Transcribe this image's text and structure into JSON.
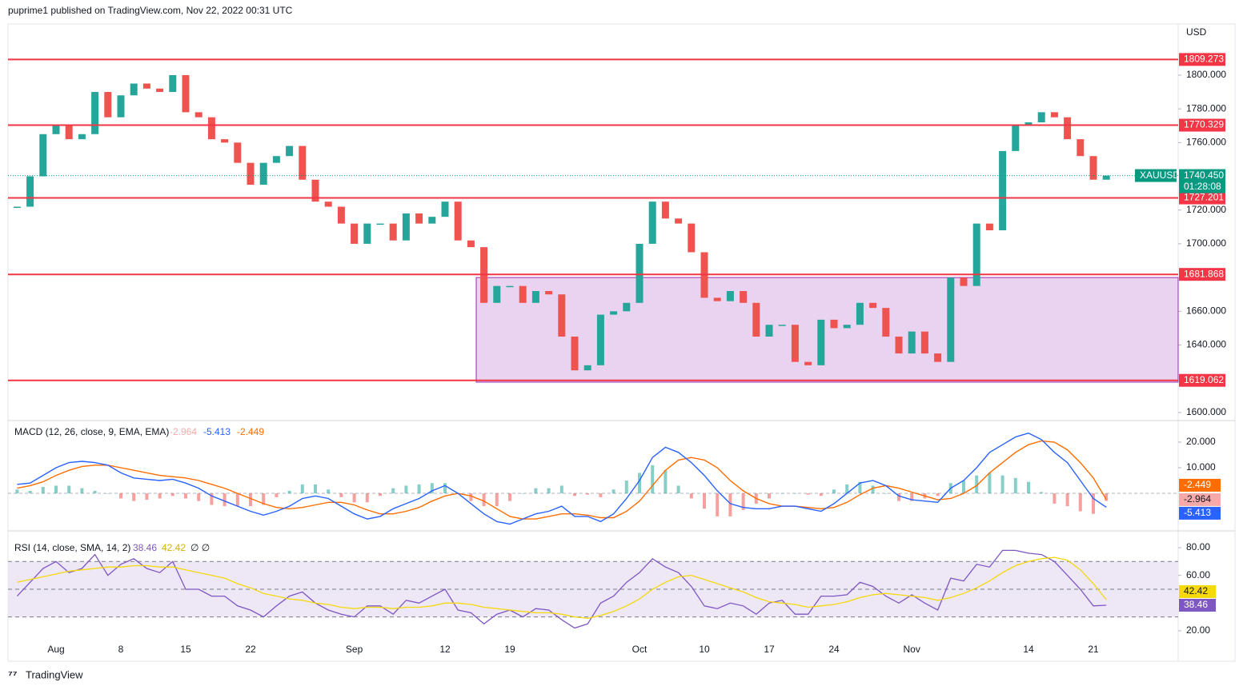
{
  "header": {
    "published": "puprime1 published on TradingView.com, Nov 22, 2022 00:31 UTC",
    "footer": "TradingView"
  },
  "chart_data": [
    {
      "type": "candlestick",
      "symbol": "XAUUSD",
      "currency": "USD",
      "categories": [
        null,
        null,
        null,
        "Aug",
        null,
        null,
        null,
        null,
        "8",
        null,
        null,
        null,
        null,
        "15",
        null,
        null,
        null,
        null,
        "22",
        null,
        null,
        null,
        null,
        null,
        null,
        null,
        "Sep",
        null,
        null,
        null,
        null,
        null,
        null,
        "12",
        null,
        null,
        null,
        null,
        "19",
        null,
        null,
        null,
        null,
        null,
        null,
        null,
        null,
        null,
        "Oct",
        null,
        null,
        null,
        null,
        "10",
        null,
        null,
        null,
        null,
        "17",
        null,
        null,
        null,
        null,
        "24",
        null,
        null,
        null,
        null,
        null,
        "Nov",
        null,
        null,
        null,
        null,
        null,
        null,
        null,
        null,
        "14",
        null,
        null,
        null,
        null,
        "21",
        null
      ],
      "values": [
        1722,
        1740,
        1765,
        1770,
        1762,
        1765,
        1790,
        1775,
        1788,
        1795,
        1792,
        1790,
        1800,
        1778,
        1775,
        1762,
        1760,
        1748,
        1735,
        1748,
        1752,
        1758,
        1738,
        1725,
        1722,
        1712,
        1700,
        1712,
        1712,
        1702,
        1718,
        1712,
        1716,
        1725,
        1702,
        1698,
        1665,
        1675,
        1675,
        1665,
        1672,
        1670,
        1645,
        1625,
        1628,
        1658,
        1660,
        1665,
        1700,
        1725,
        1715,
        1712,
        1695,
        1668,
        1666,
        1672,
        1665,
        1645,
        1652,
        1652,
        1630,
        1628,
        1655,
        1650,
        1652,
        1665,
        1662,
        1645,
        1635,
        1648,
        1635,
        1630,
        1680,
        1675,
        1712,
        1708,
        1755,
        1770,
        1772,
        1778,
        1775,
        1762,
        1752,
        1738,
        1740.45
      ],
      "up_color": "#26a69a",
      "down_color": "#ef5350",
      "ylim": [
        1595.7,
        1830.3
      ],
      "yticks": [
        {
          "value": 1600,
          "label": "1600.000"
        },
        {
          "value": 1640,
          "label": "1640.000"
        },
        {
          "value": 1660,
          "label": "1660.000"
        },
        {
          "value": 1700,
          "label": "1700.000"
        },
        {
          "value": 1720,
          "label": "1720.000"
        },
        {
          "value": 1760,
          "label": "1760.000"
        },
        {
          "value": 1780,
          "label": "1780.000"
        },
        {
          "value": 1800,
          "label": "1800.000"
        }
      ],
      "levels": [
        1809.273,
        1770.329,
        1727.201,
        1681.868,
        1619.062
      ],
      "level_color": "#f23645",
      "zone": {
        "ylim": [
          1618,
          1680
        ],
        "color": "#e9d3f0",
        "border": "#9c27b0"
      },
      "last_price": {
        "value": 1740.45,
        "label": "1740.450"
      },
      "countdown": "01:28:08",
      "last_color": "#089981"
    },
    {
      "type": "macd",
      "label": "MACD (12, 26, close, 9, EMA, EMA)",
      "ylim": [
        -13.4,
        28.1
      ],
      "yticks": [
        {
          "value": 10,
          "label": "10.000"
        },
        {
          "value": 20,
          "label": "20.000"
        }
      ],
      "histogram": {
        "up_color": "#26a69a",
        "down_color": "#ef5350",
        "label_color": "#f7a9a9",
        "values": [
          1.5,
          1,
          2.5,
          3,
          3,
          2,
          1,
          0,
          -2,
          -3,
          -2.5,
          -2,
          -1,
          -2,
          -3,
          -4.5,
          -5,
          -5,
          -5,
          -4.5,
          -1.5,
          1,
          3.5,
          3.5,
          1.5,
          -1.5,
          -3.5,
          -3.5,
          -1,
          2,
          3,
          3.5,
          4,
          4,
          0,
          -3,
          -5,
          -5,
          -3,
          0,
          2,
          2,
          3,
          -1,
          -0.5,
          -1.5,
          1.5,
          5,
          8,
          11,
          9,
          3,
          -2,
          -6,
          -9,
          -9,
          -6.5,
          -4,
          -2,
          0,
          0,
          -0.5,
          -1,
          1.5,
          3.5,
          4.5,
          3,
          0,
          -3,
          -3,
          -2,
          -1,
          4,
          5,
          7,
          8,
          7,
          6,
          4.5,
          0.5,
          -4,
          -5,
          -7,
          -8,
          -2.964
        ]
      },
      "macd": {
        "color": "#2962ff",
        "values": [
          3.5,
          4,
          7,
          10,
          12,
          12.5,
          12,
          11,
          8,
          6,
          5.5,
          5,
          5.5,
          4,
          2,
          -1,
          -3,
          -5,
          -7,
          -8.5,
          -7,
          -5,
          -2,
          -1,
          -2,
          -5,
          -8,
          -10,
          -9,
          -6,
          -4,
          -2,
          1,
          3,
          0,
          -4,
          -8,
          -11,
          -12,
          -10,
          -8,
          -7,
          -5,
          -9,
          -9,
          -11,
          -8,
          -2,
          5,
          14,
          18,
          16,
          12,
          7,
          1,
          -4,
          -5.5,
          -6,
          -6,
          -5,
          -5,
          -6,
          -7,
          -4,
          0,
          4,
          5,
          3,
          -1,
          -2.5,
          -3,
          -3.5,
          2,
          5,
          10,
          16,
          19,
          22,
          23.5,
          21,
          16,
          12,
          5,
          -2,
          -5.413
        ]
      },
      "signal": {
        "color": "#ff6d00",
        "values": [
          2,
          3,
          4.5,
          7,
          9,
          10.5,
          11,
          11,
          10,
          9,
          8,
          7,
          6.5,
          6,
          5,
          3.5,
          2,
          0,
          -2,
          -4,
          -5.5,
          -6,
          -5.5,
          -4.5,
          -3.5,
          -3.5,
          -4.5,
          -6.5,
          -8,
          -8,
          -7,
          -5.5,
          -3,
          -1,
          0,
          -1,
          -3,
          -6,
          -9,
          -10,
          -10,
          -9,
          -8,
          -8,
          -8.5,
          -9.5,
          -9.5,
          -7,
          -3,
          3,
          9,
          13,
          14,
          13,
          10,
          5,
          1,
          -2,
          -4,
          -5,
          -5,
          -5.5,
          -6,
          -5.5,
          -3.5,
          -0.5,
          2,
          3,
          2,
          0.5,
          -1,
          -2.5,
          -2,
          0,
          3,
          8,
          12,
          16,
          19,
          20.5,
          20,
          17,
          12,
          6,
          -2.449
        ]
      }
    },
    {
      "type": "rsi",
      "label": "RSI (14, close, SMA, 14, 2)",
      "flags": "∅ ∅",
      "ylim": [
        -0.8,
        89.8
      ],
      "yticks": [
        {
          "value": 20,
          "label": "20.00"
        },
        {
          "value": 60,
          "label": "60.00"
        },
        {
          "value": 80,
          "label": "80.00"
        }
      ],
      "bands": [
        30,
        50,
        70
      ],
      "band_color": "#ede7f6",
      "rsi": {
        "color": "#7e57c2",
        "values": [
          45,
          55,
          65,
          70,
          62,
          65,
          75,
          60,
          68,
          72,
          65,
          62,
          70,
          50,
          50,
          45,
          45,
          38,
          35,
          30,
          38,
          45,
          48,
          40,
          35,
          32,
          30,
          38,
          38,
          32,
          42,
          40,
          45,
          50,
          35,
          33,
          25,
          32,
          35,
          30,
          36,
          35,
          28,
          22,
          25,
          40,
          45,
          55,
          62,
          72,
          66,
          62,
          52,
          38,
          36,
          40,
          38,
          32,
          40,
          42,
          32,
          32,
          45,
          45,
          46,
          55,
          52,
          45,
          40,
          46,
          40,
          35,
          58,
          56,
          68,
          66,
          78,
          78,
          76,
          75,
          70,
          60,
          50,
          38,
          38.46
        ]
      },
      "sma": {
        "color": "#f5d90a",
        "values": [
          55,
          57,
          59,
          61,
          63,
          64,
          65,
          66,
          66,
          67,
          67,
          66,
          66,
          64,
          62,
          60,
          58,
          54,
          51,
          47,
          45,
          43,
          42,
          40,
          39,
          37,
          36,
          37,
          37,
          36,
          37,
          37,
          38,
          40,
          40,
          39,
          37,
          36,
          35,
          34,
          33,
          33,
          32,
          30,
          29,
          31,
          34,
          38,
          43,
          50,
          55,
          59,
          60,
          57,
          54,
          51,
          48,
          44,
          41,
          40,
          39,
          37,
          38,
          39,
          41,
          44,
          46,
          47,
          46,
          45,
          44,
          42,
          44,
          47,
          51,
          56,
          62,
          67,
          70,
          72,
          73,
          71,
          64,
          54,
          42.42
        ]
      }
    }
  ]
}
